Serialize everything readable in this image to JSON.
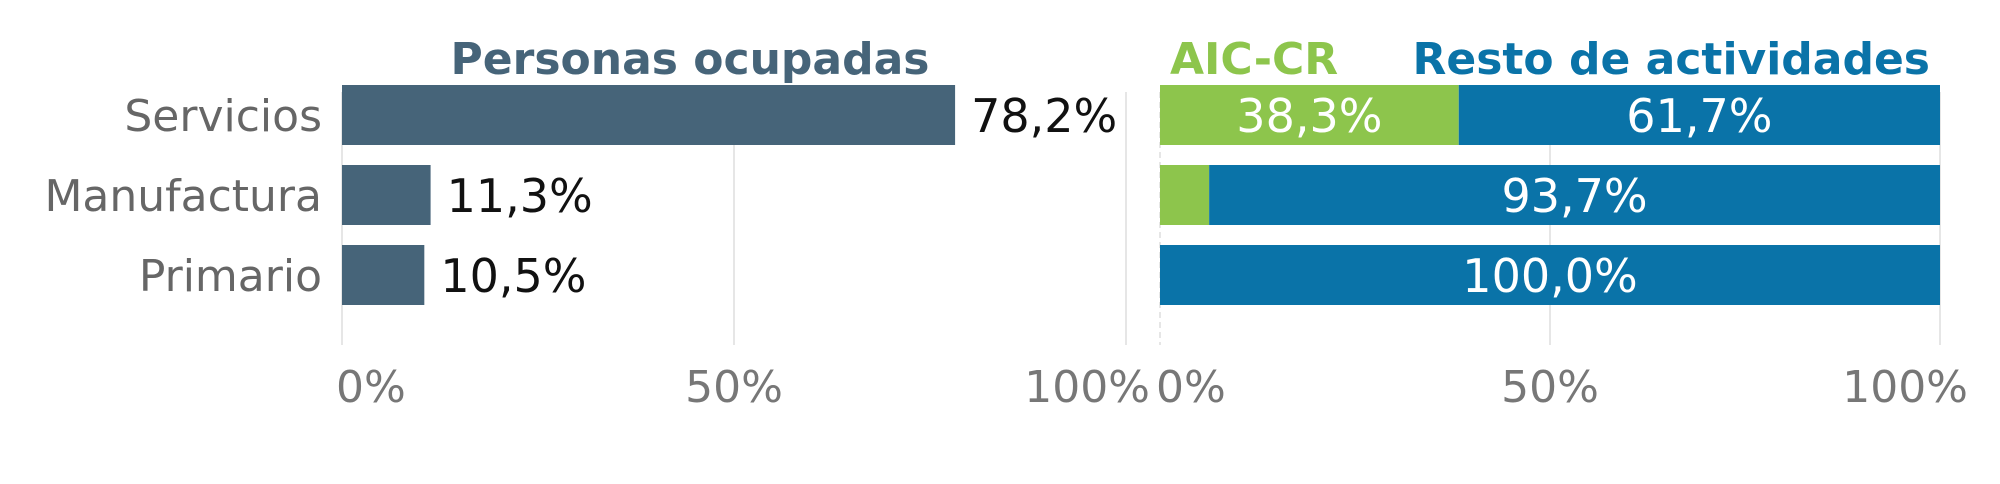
{
  "chart_data": [
    {
      "type": "bar",
      "orientation": "horizontal",
      "title": "Personas ocupadas",
      "categories": [
        "Servicios",
        "Manufactura",
        "Primario"
      ],
      "values": [
        78.2,
        11.3,
        10.5
      ],
      "value_labels": [
        "78,2%",
        "11,3%",
        "10,5%"
      ],
      "xlim": [
        0,
        100
      ],
      "xticks": [
        0,
        50,
        100
      ],
      "xtick_labels": [
        "0%",
        "50%",
        "100%"
      ],
      "grid": true,
      "colors": {
        "bar": "#466479",
        "title": "#466479"
      }
    },
    {
      "type": "bar",
      "orientation": "horizontal",
      "stacked": true,
      "categories": [
        "Servicios",
        "Manufactura",
        "Primario"
      ],
      "series": [
        {
          "name": "AIC-CR",
          "values": [
            38.3,
            6.3,
            0.0
          ],
          "value_labels": [
            "38,3%",
            "",
            ""
          ],
          "color": "#8dc54c"
        },
        {
          "name": "Resto de actividades",
          "values": [
            61.7,
            93.7,
            100.0
          ],
          "value_labels": [
            "61,7%",
            "93,7%",
            "100,0%"
          ],
          "color": "#0a73a8"
        }
      ],
      "xlim": [
        0,
        100
      ],
      "xticks": [
        0,
        50,
        100
      ],
      "xtick_labels": [
        "0%",
        "50%",
        "100%"
      ],
      "grid": true,
      "legend": "top"
    }
  ]
}
